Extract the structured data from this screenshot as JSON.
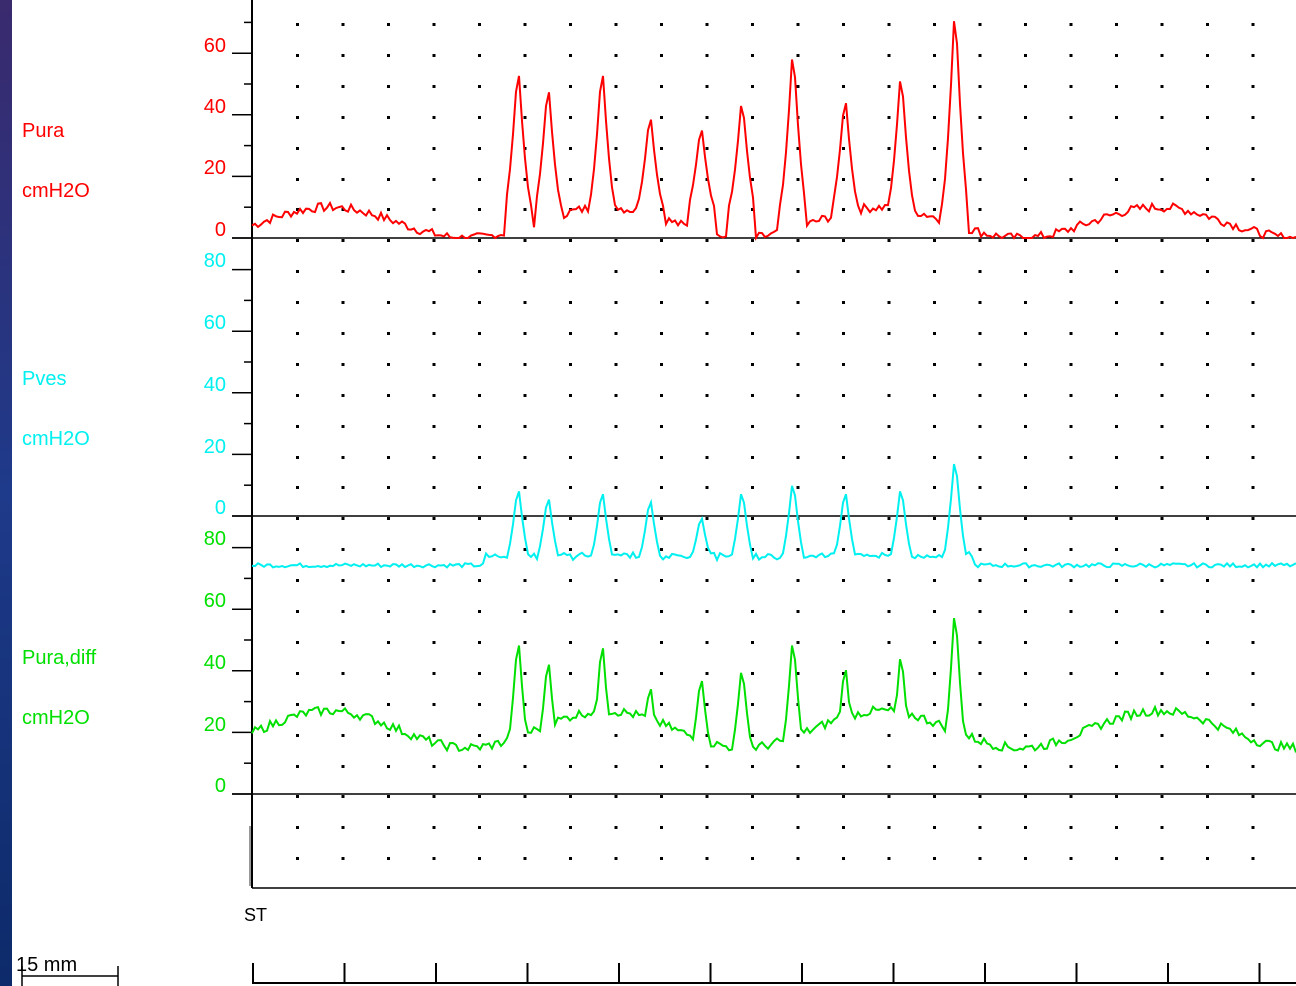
{
  "colors": {
    "pura": "#ff0000",
    "pves": "#00f0f0",
    "pdiff": "#00e000",
    "axis": "#000000",
    "background": "#ffffff"
  },
  "labels": {
    "pura": {
      "name": "Pura",
      "unit": "cmH2O"
    },
    "pves": {
      "name": "Pves",
      "unit": "cmH2O"
    },
    "pdiff": {
      "name": "Pura,diff",
      "unit": "cmH2O"
    },
    "marker": "ST",
    "scale": "15 mm"
  },
  "chart_data": [
    {
      "type": "line",
      "series": [
        {
          "name": "Pura",
          "color": "#ff0000"
        }
      ],
      "ylabel": "cmH2O",
      "yticks": [
        "0",
        "20",
        "40",
        "60"
      ],
      "ylim": [
        0,
        80
      ],
      "grid": "dotted",
      "peaks": [
        58,
        52,
        58,
        42,
        38,
        47,
        64,
        48,
        56,
        78
      ],
      "baseline_range": [
        0,
        10
      ]
    },
    {
      "type": "line",
      "series": [
        {
          "name": "Pves",
          "color": "#00f0f0"
        }
      ],
      "ylabel": "cmH2O",
      "yticks": [
        "0",
        "20",
        "40",
        "60",
        "80"
      ],
      "ylim": [
        -18,
        80
      ],
      "grid": "dotted",
      "peaks": [
        11,
        8,
        10,
        7,
        1,
        10,
        13,
        10,
        11,
        21
      ],
      "baseline_value": -16
    },
    {
      "type": "line",
      "series": [
        {
          "name": "Pura,diff",
          "color": "#00e000"
        }
      ],
      "ylabel": "cmH2O",
      "yticks": [
        "0",
        "20",
        "40",
        "60",
        "80"
      ],
      "ylim": [
        -4,
        80
      ],
      "grid": "dotted",
      "peaks": [
        53,
        46,
        52,
        37,
        40,
        43,
        53,
        44,
        48,
        63
      ],
      "baseline_range": [
        15,
        27
      ]
    }
  ]
}
